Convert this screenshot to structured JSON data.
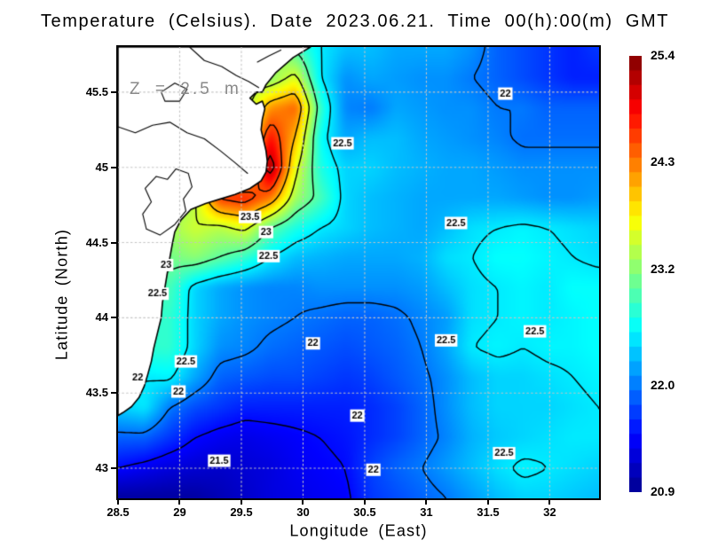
{
  "header": {
    "title": "Temperature (Celsius). Date 2023.06.21. Time 00(h):00(m) GMT"
  },
  "style": {
    "background": "#ffffff",
    "contour_color": "#000000",
    "grid_color": "#c4c4c4",
    "depth_label_color": "#8a8a8a",
    "frame_color": "#000000",
    "label_chip_bg": "#ffffff"
  },
  "chart_data": {
    "type": "heatmap",
    "title": "Temperature (Celsius). Date 2023.06.21. Time 00(h):00(m) GMT",
    "depth_label": "Z = 2.5 m",
    "units": "Celsius",
    "xlabel": "Longitude (East)",
    "ylabel": "Latitude (North)",
    "map": {
      "lon_min": 28.5,
      "lon_max": 32.4,
      "lat_min": 42.8,
      "lat_max": 45.8
    },
    "x_axis": {
      "title": "Longitude (East)",
      "ticks": [
        {
          "value": 28.5,
          "label": "28.5"
        },
        {
          "value": 29,
          "label": "29"
        },
        {
          "value": 29.5,
          "label": "29.5"
        },
        {
          "value": 30,
          "label": "30"
        },
        {
          "value": 30.5,
          "label": "30.5"
        },
        {
          "value": 31,
          "label": "31"
        },
        {
          "value": 31.5,
          "label": "31.5"
        },
        {
          "value": 32,
          "label": "32"
        }
      ]
    },
    "y_axis": {
      "title": "Latitude (North)",
      "ticks": [
        {
          "value": 43,
          "label": "43"
        },
        {
          "value": 43.5,
          "label": "43.5"
        },
        {
          "value": 44,
          "label": "44"
        },
        {
          "value": 44.5,
          "label": "44.5"
        },
        {
          "value": 45,
          "label": "45"
        },
        {
          "value": 45.5,
          "label": "45.5"
        }
      ]
    },
    "graticule": {
      "lons": [
        29,
        29.5,
        30,
        30.5,
        31,
        31.5,
        32
      ],
      "lats": [
        43,
        43.5,
        44,
        44.5,
        45,
        45.5
      ]
    },
    "temperature_grid": {
      "comment_order": "rows from lat_max (45.8) south to lat_min (42.8), cols from lon_min (28.5) east to lon_max (32.4)",
      "nx": 20,
      "ny": 16,
      "values": [
        [
          23.0,
          23.0,
          23.0,
          23.0,
          23.2,
          23.4,
          23.5,
          22.9,
          22.5,
          22.3,
          22.3,
          22.2,
          22.2,
          22.2,
          22.1,
          21.9,
          21.8,
          21.7,
          21.6,
          21.7
        ],
        [
          23.0,
          23.0,
          23.0,
          23.0,
          23.2,
          23.3,
          23.2,
          23.6,
          22.5,
          22.1,
          22.2,
          22.15,
          22.1,
          22.1,
          22.0,
          21.9,
          21.8,
          21.7,
          21.6,
          21.6
        ],
        [
          23.0,
          23.0,
          23.0,
          23.2,
          23.3,
          23.3,
          24.2,
          24.4,
          22.8,
          22.05,
          22.0,
          22.2,
          22.15,
          22.1,
          22.1,
          22.0,
          22.0,
          21.9,
          21.9,
          21.9
        ],
        [
          23.0,
          23.0,
          23.0,
          23.2,
          23.3,
          23.5,
          24.8,
          24.0,
          22.6,
          22.2,
          22.3,
          22.3,
          22.2,
          22.15,
          22.1,
          22.05,
          21.95,
          21.95,
          21.95,
          21.95
        ],
        [
          23.0,
          23.0,
          23.0,
          23.2,
          23.4,
          23.6,
          25.3,
          23.6,
          22.7,
          22.4,
          22.4,
          22.3,
          22.25,
          22.2,
          22.2,
          22.15,
          22.1,
          22.1,
          22.1,
          22.1
        ],
        [
          23.0,
          23.0,
          23.2,
          23.4,
          24.6,
          24.7,
          24.3,
          23.3,
          22.9,
          22.4,
          22.3,
          22.25,
          22.2,
          22.2,
          22.2,
          22.2,
          22.15,
          22.1,
          22.1,
          22.15
        ],
        [
          23.0,
          23.1,
          23.3,
          23.5,
          23.4,
          23.6,
          23.0,
          22.7,
          22.5,
          22.4,
          22.3,
          22.25,
          22.2,
          22.3,
          22.45,
          22.5,
          22.55,
          22.5,
          22.45,
          22.4
        ],
        [
          23.0,
          23.0,
          23.1,
          23.2,
          23.0,
          22.8,
          22.5,
          22.3,
          22.25,
          22.2,
          22.2,
          22.2,
          22.25,
          22.45,
          22.5,
          22.6,
          22.6,
          22.55,
          22.5,
          22.45
        ],
        [
          22.9,
          22.9,
          22.9,
          22.4,
          22.2,
          22.1,
          22.05,
          22.05,
          22.1,
          22.1,
          22.1,
          22.1,
          22.15,
          22.3,
          22.45,
          22.5,
          22.55,
          22.5,
          22.6,
          22.6
        ],
        [
          22.8,
          22.8,
          22.8,
          22.4,
          22.2,
          22.1,
          22.05,
          22.0,
          21.95,
          21.9,
          21.9,
          21.95,
          22.05,
          22.15,
          22.45,
          22.5,
          22.55,
          22.5,
          22.55,
          22.6
        ],
        [
          22.8,
          22.8,
          22.8,
          22.4,
          22.1,
          22.05,
          21.95,
          21.9,
          21.85,
          21.8,
          21.85,
          21.9,
          22.0,
          22.2,
          22.5,
          22.55,
          22.5,
          22.55,
          22.55,
          22.6
        ],
        [
          22.5,
          22.5,
          22.55,
          22.2,
          21.9,
          21.85,
          21.8,
          21.8,
          21.75,
          21.7,
          21.75,
          21.85,
          21.95,
          22.1,
          22.3,
          22.4,
          22.4,
          22.45,
          22.5,
          22.55
        ],
        [
          22.4,
          22.5,
          22.0,
          21.8,
          21.7,
          21.6,
          21.6,
          21.6,
          21.6,
          21.6,
          21.65,
          21.75,
          21.9,
          22.1,
          22.3,
          22.4,
          22.4,
          22.4,
          22.45,
          22.5
        ],
        [
          21.9,
          21.9,
          21.7,
          21.5,
          21.4,
          21.35,
          21.4,
          21.45,
          21.5,
          21.55,
          21.65,
          21.75,
          21.9,
          22.05,
          22.25,
          22.35,
          22.4,
          22.45,
          22.5,
          22.5
        ],
        [
          21.5,
          21.4,
          21.3,
          21.25,
          21.2,
          21.25,
          21.3,
          21.4,
          21.45,
          21.5,
          21.75,
          21.9,
          22.0,
          22.15,
          22.3,
          22.45,
          22.55,
          22.5,
          22.45,
          22.4
        ],
        [
          21.0,
          21.0,
          21.0,
          21.0,
          21.1,
          21.2,
          21.3,
          21.35,
          21.4,
          21.45,
          21.7,
          21.8,
          21.9,
          22.0,
          22.15,
          22.3,
          22.4,
          22.4,
          22.35,
          22.3
        ]
      ]
    },
    "contours": {
      "levels": [
        21.5,
        22,
        22.5,
        23,
        23.5,
        24,
        24.5,
        25
      ],
      "labels": [
        {
          "t": "22",
          "lon": 31.64,
          "lat": 45.49
        },
        {
          "t": "22.5",
          "lon": 30.32,
          "lat": 45.16
        },
        {
          "t": "22.5",
          "lon": 31.24,
          "lat": 44.63
        },
        {
          "t": "23.5",
          "lon": 29.57,
          "lat": 44.67
        },
        {
          "t": "23",
          "lon": 29.7,
          "lat": 44.57
        },
        {
          "t": "22.5",
          "lon": 29.72,
          "lat": 44.41
        },
        {
          "t": "23",
          "lon": 28.89,
          "lat": 44.35
        },
        {
          "t": "22.5",
          "lon": 28.82,
          "lat": 44.16
        },
        {
          "t": "22",
          "lon": 30.08,
          "lat": 43.83
        },
        {
          "t": "22.5",
          "lon": 31.16,
          "lat": 43.85
        },
        {
          "t": "22.5",
          "lon": 31.88,
          "lat": 43.91
        },
        {
          "t": "22.5",
          "lon": 29.05,
          "lat": 43.71
        },
        {
          "t": "22",
          "lon": 28.66,
          "lat": 43.6
        },
        {
          "t": "22",
          "lon": 28.99,
          "lat": 43.51
        },
        {
          "t": "22",
          "lon": 30.44,
          "lat": 43.35
        },
        {
          "t": "21.5",
          "lon": 29.32,
          "lat": 43.05
        },
        {
          "t": "22",
          "lon": 30.57,
          "lat": 42.99
        },
        {
          "t": "22.5",
          "lon": 31.63,
          "lat": 43.1
        }
      ]
    },
    "land": {
      "fill": "#ffffff",
      "stroke": "#000000",
      "coast": [
        [
          28.5,
          45.8
        ],
        [
          29.1,
          45.8
        ],
        [
          29.45,
          45.8
        ],
        [
          29.7,
          45.8
        ],
        [
          29.9,
          45.8
        ],
        [
          30.06,
          45.8
        ],
        [
          29.92,
          45.73
        ],
        [
          29.78,
          45.63
        ],
        [
          29.7,
          45.55
        ],
        [
          29.67,
          45.5
        ],
        [
          29.62,
          45.5
        ],
        [
          29.57,
          45.46
        ],
        [
          29.62,
          45.42
        ],
        [
          29.67,
          45.44
        ],
        [
          29.69,
          45.39
        ],
        [
          29.67,
          45.32
        ],
        [
          29.66,
          45.25
        ],
        [
          29.68,
          45.18
        ],
        [
          29.7,
          45.11
        ],
        [
          29.71,
          45.04
        ],
        [
          29.7,
          44.97
        ],
        [
          29.66,
          44.91
        ],
        [
          29.57,
          44.86
        ],
        [
          29.45,
          44.82
        ],
        [
          29.33,
          44.79
        ],
        [
          29.21,
          44.76
        ],
        [
          29.09,
          44.72
        ],
        [
          29.01,
          44.65
        ],
        [
          28.96,
          44.57
        ],
        [
          28.94,
          44.49
        ],
        [
          28.92,
          44.4
        ],
        [
          28.9,
          44.3
        ],
        [
          28.88,
          44.2
        ],
        [
          28.86,
          44.1
        ],
        [
          28.85,
          44.0
        ],
        [
          28.82,
          43.9
        ],
        [
          28.79,
          43.8
        ],
        [
          28.77,
          43.71
        ],
        [
          28.74,
          43.62
        ],
        [
          28.71,
          43.54
        ],
        [
          28.67,
          43.47
        ],
        [
          28.61,
          43.41
        ],
        [
          28.54,
          43.37
        ],
        [
          28.5,
          43.35
        ]
      ],
      "lakes": [
        [
          [
            28.97,
            44.99
          ],
          [
            29.07,
            44.96
          ],
          [
            29.1,
            44.87
          ],
          [
            29.03,
            44.79
          ],
          [
            29.05,
            44.71
          ],
          [
            28.96,
            44.62
          ],
          [
            28.84,
            44.55
          ],
          [
            28.73,
            44.59
          ],
          [
            28.7,
            44.69
          ],
          [
            28.77,
            44.77
          ],
          [
            28.72,
            44.86
          ],
          [
            28.81,
            44.94
          ],
          [
            28.9,
            44.92
          ]
        ],
        [
          [
            28.85,
            45.5
          ],
          [
            28.96,
            45.56
          ],
          [
            29.06,
            45.52
          ],
          [
            29.0,
            45.44
          ],
          [
            28.88,
            45.44
          ]
        ]
      ],
      "rivers": [
        [
          [
            28.5,
            45.27
          ],
          [
            28.64,
            45.23
          ],
          [
            28.78,
            45.28
          ],
          [
            28.92,
            45.3
          ],
          [
            29.06,
            45.23
          ],
          [
            29.2,
            45.19
          ],
          [
            29.33,
            45.11
          ],
          [
            29.45,
            45.03
          ],
          [
            29.55,
            44.96
          ]
        ],
        [
          [
            29.08,
            45.8
          ],
          [
            29.2,
            45.71
          ],
          [
            29.34,
            45.67
          ],
          [
            29.46,
            45.61
          ],
          [
            29.56,
            45.57
          ],
          [
            29.64,
            45.53
          ]
        ],
        [
          [
            29.63,
            45.7
          ],
          [
            29.72,
            45.74
          ],
          [
            29.82,
            45.78
          ]
        ]
      ]
    },
    "colormap": {
      "name": "jet",
      "vmin": 20.9,
      "vmax": 25.4,
      "stops": [
        [
          0,
          0,
          0,
          143
        ],
        [
          0.125,
          0,
          0,
          255
        ],
        [
          0.375,
          0,
          255,
          255
        ],
        [
          0.625,
          255,
          255,
          0
        ],
        [
          0.875,
          255,
          0,
          0
        ],
        [
          1,
          128,
          0,
          0
        ]
      ]
    }
  },
  "colorbar": {
    "vmin": 20.9,
    "vmax": 25.4,
    "steps": 30,
    "tick_labels": [
      {
        "value": 25.4,
        "label": "25.4"
      },
      {
        "value": 24.3,
        "label": "24.3"
      },
      {
        "value": 23.2,
        "label": "23.2"
      },
      {
        "value": 22.0,
        "label": "22.0"
      },
      {
        "value": 20.9,
        "label": "20.9"
      }
    ]
  }
}
